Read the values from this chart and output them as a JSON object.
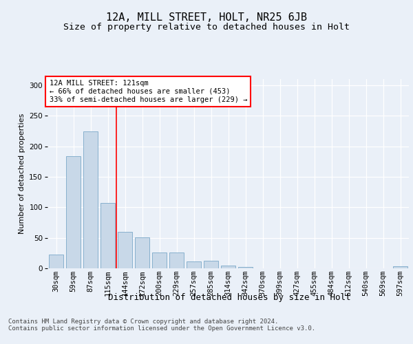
{
  "title1": "12A, MILL STREET, HOLT, NR25 6JB",
  "title2": "Size of property relative to detached houses in Holt",
  "xlabel": "Distribution of detached houses by size in Holt",
  "ylabel": "Number of detached properties",
  "categories": [
    "30sqm",
    "59sqm",
    "87sqm",
    "115sqm",
    "144sqm",
    "172sqm",
    "200sqm",
    "229sqm",
    "257sqm",
    "285sqm",
    "314sqm",
    "342sqm",
    "370sqm",
    "399sqm",
    "427sqm",
    "455sqm",
    "484sqm",
    "512sqm",
    "540sqm",
    "569sqm",
    "597sqm"
  ],
  "values": [
    22,
    184,
    224,
    107,
    60,
    51,
    26,
    26,
    11,
    12,
    4,
    2,
    0,
    0,
    0,
    0,
    0,
    0,
    0,
    0,
    3
  ],
  "bar_color": "#c8d8e8",
  "bar_edge_color": "#7aa8c8",
  "vline_x": 3.5,
  "vline_color": "red",
  "annotation_text": "12A MILL STREET: 121sqm\n← 66% of detached houses are smaller (453)\n33% of semi-detached houses are larger (229) →",
  "annotation_box_color": "white",
  "annotation_box_edge_color": "red",
  "ylim": [
    0,
    310
  ],
  "yticks": [
    0,
    50,
    100,
    150,
    200,
    250,
    300
  ],
  "bg_color": "#eaf0f8",
  "plot_bg_color": "#eaf0f8",
  "footer": "Contains HM Land Registry data © Crown copyright and database right 2024.\nContains public sector information licensed under the Open Government Licence v3.0.",
  "title1_fontsize": 11,
  "title2_fontsize": 9.5,
  "xlabel_fontsize": 9,
  "ylabel_fontsize": 8,
  "tick_fontsize": 7.5,
  "annotation_fontsize": 7.5,
  "footer_fontsize": 6.5
}
